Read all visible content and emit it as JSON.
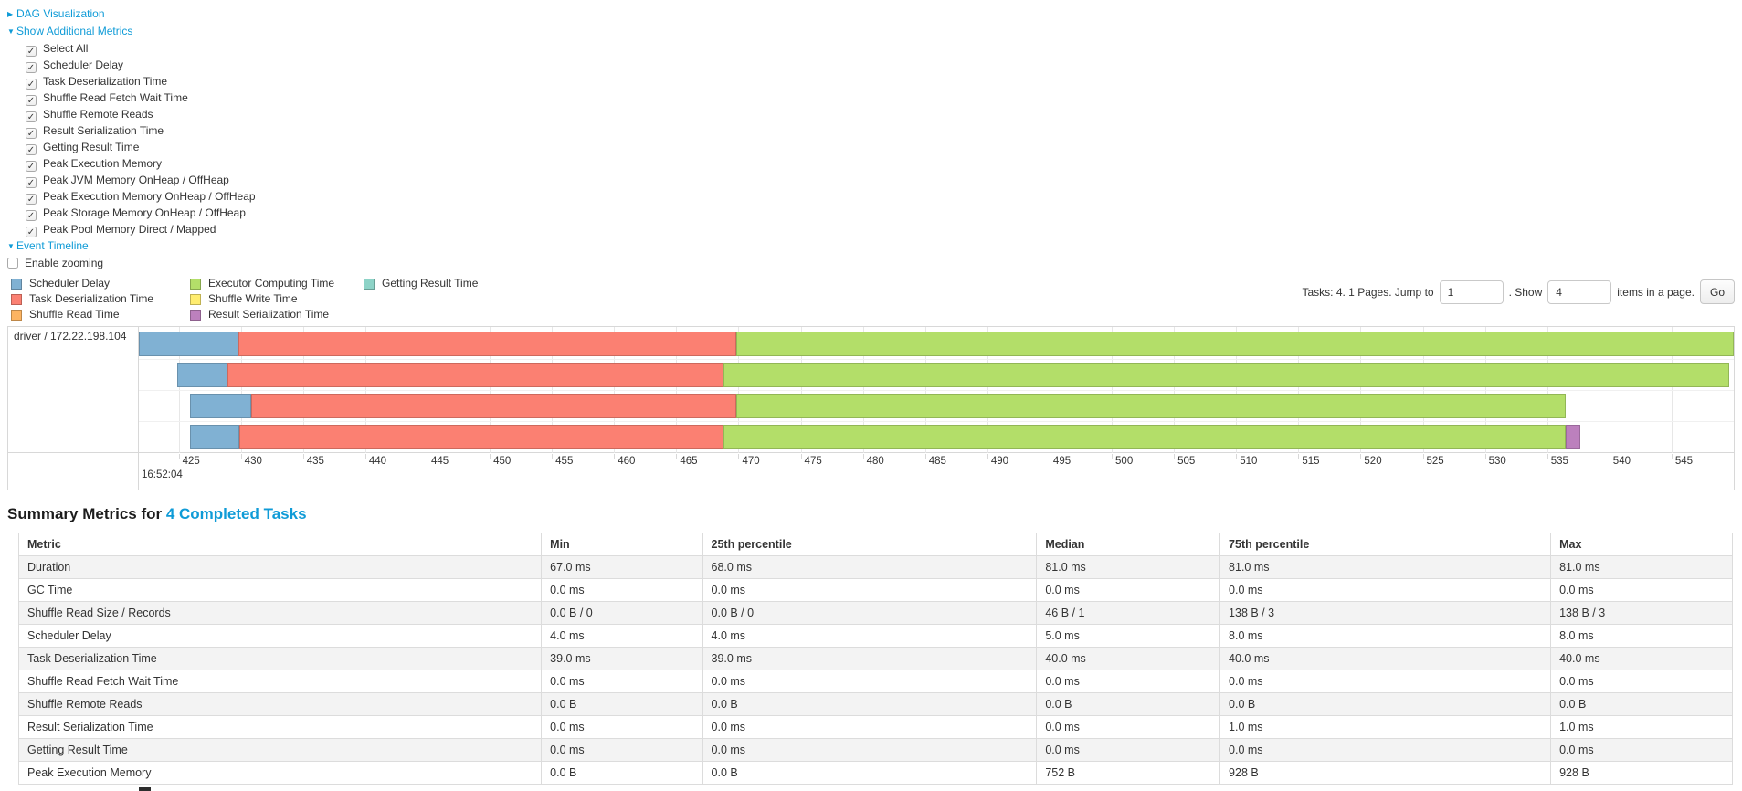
{
  "icons": {
    "caret_right": "▶",
    "caret_down": "▼",
    "check": "✓"
  },
  "link_color": "#0f9bd7",
  "toggles": {
    "dag": {
      "label": "DAG Visualization",
      "expanded": false
    },
    "additional_metrics": {
      "label": "Show Additional Metrics",
      "expanded": true
    },
    "event_timeline": {
      "label": "Event Timeline",
      "expanded": true
    }
  },
  "metrics_checkboxes": [
    {
      "label": "Select All",
      "checked": true
    },
    {
      "label": "Scheduler Delay",
      "checked": true
    },
    {
      "label": "Task Deserialization Time",
      "checked": true
    },
    {
      "label": "Shuffle Read Fetch Wait Time",
      "checked": true
    },
    {
      "label": "Shuffle Remote Reads",
      "checked": true
    },
    {
      "label": "Result Serialization Time",
      "checked": true
    },
    {
      "label": "Getting Result Time",
      "checked": true
    },
    {
      "label": "Peak Execution Memory",
      "checked": true
    },
    {
      "label": "Peak JVM Memory OnHeap / OffHeap",
      "checked": true
    },
    {
      "label": "Peak Execution Memory OnHeap / OffHeap",
      "checked": true
    },
    {
      "label": "Peak Storage Memory OnHeap / OffHeap",
      "checked": true
    },
    {
      "label": "Peak Pool Memory Direct / Mapped",
      "checked": true
    }
  ],
  "enable_zooming": {
    "label": "Enable zooming",
    "checked": false
  },
  "legend": [
    {
      "label": "Scheduler Delay",
      "color": "#80B1D3"
    },
    {
      "label": "Task Deserialization Time",
      "color": "#FB8072"
    },
    {
      "label": "Shuffle Read Time",
      "color": "#FDB462"
    },
    {
      "label": "Executor Computing Time",
      "color": "#B3DE69"
    },
    {
      "label": "Shuffle Write Time",
      "color": "#FFED6F"
    },
    {
      "label": "Result Serialization Time",
      "color": "#BC80BD"
    },
    {
      "label": "Getting Result Time",
      "color": "#8DD3C7"
    }
  ],
  "pagination": {
    "tasks_text": "Tasks: 4. 1 Pages. Jump to",
    "jump_value": "1",
    "show_text": ". Show",
    "show_value": "4",
    "items_text": "items in a page.",
    "go_label": "Go"
  },
  "chart_data": {
    "type": "timeline",
    "group_label": "driver / 172.22.198.104",
    "axis": {
      "min": 421.8,
      "max": 550.0,
      "tick_start": 425,
      "tick_end": 550,
      "tick_step": 5,
      "major_label": "16:52:04"
    },
    "series_colors": {
      "scheduler_delay": "#80B1D3",
      "task_deserialization": "#FB8072",
      "shuffle_read": "#FDB462",
      "executor_computing": "#B3DE69",
      "shuffle_write": "#FFED6F",
      "result_serialization": "#BC80BD",
      "getting_result": "#8DD3C7"
    },
    "tasks": [
      {
        "segments": [
          {
            "type": "scheduler_delay",
            "start": 421.8,
            "end": 429.8
          },
          {
            "type": "task_deserialization",
            "start": 429.8,
            "end": 469.8
          },
          {
            "type": "executor_computing",
            "start": 469.8,
            "end": 550.0
          }
        ]
      },
      {
        "segments": [
          {
            "type": "scheduler_delay",
            "start": 424.9,
            "end": 428.9
          },
          {
            "type": "task_deserialization",
            "start": 428.9,
            "end": 468.8
          },
          {
            "type": "executor_computing",
            "start": 468.8,
            "end": 549.6
          }
        ]
      },
      {
        "segments": [
          {
            "type": "scheduler_delay",
            "start": 425.9,
            "end": 430.8
          },
          {
            "type": "task_deserialization",
            "start": 430.8,
            "end": 469.8
          },
          {
            "type": "executor_computing",
            "start": 469.8,
            "end": 536.5
          }
        ]
      },
      {
        "segments": [
          {
            "type": "scheduler_delay",
            "start": 425.9,
            "end": 429.9
          },
          {
            "type": "task_deserialization",
            "start": 429.9,
            "end": 468.8
          },
          {
            "type": "executor_computing",
            "start": 468.8,
            "end": 536.5
          },
          {
            "type": "result_serialization",
            "start": 536.5,
            "end": 537.7
          }
        ]
      }
    ]
  },
  "summary": {
    "heading_prefix": "Summary Metrics for ",
    "heading_link": "4 Completed Tasks",
    "columns": [
      "Metric",
      "Min",
      "25th percentile",
      "Median",
      "75th percentile",
      "Max"
    ],
    "column_widths_pct": [
      30.5,
      9.4,
      19.5,
      10.7,
      19.3,
      10.6
    ],
    "rows": [
      [
        "Duration",
        "67.0 ms",
        "68.0 ms",
        "81.0 ms",
        "81.0 ms",
        "81.0 ms"
      ],
      [
        "GC Time",
        "0.0 ms",
        "0.0 ms",
        "0.0 ms",
        "0.0 ms",
        "0.0 ms"
      ],
      [
        "Shuffle Read Size / Records",
        "0.0 B / 0",
        "0.0 B / 0",
        "46 B / 1",
        "138 B / 3",
        "138 B / 3"
      ],
      [
        "Scheduler Delay",
        "4.0 ms",
        "4.0 ms",
        "5.0 ms",
        "8.0 ms",
        "8.0 ms"
      ],
      [
        "Task Deserialization Time",
        "39.0 ms",
        "39.0 ms",
        "40.0 ms",
        "40.0 ms",
        "40.0 ms"
      ],
      [
        "Shuffle Read Fetch Wait Time",
        "0.0 ms",
        "0.0 ms",
        "0.0 ms",
        "0.0 ms",
        "0.0 ms"
      ],
      [
        "Shuffle Remote Reads",
        "0.0 B",
        "0.0 B",
        "0.0 B",
        "0.0 B",
        "0.0 B"
      ],
      [
        "Result Serialization Time",
        "0.0 ms",
        "0.0 ms",
        "0.0 ms",
        "1.0 ms",
        "1.0 ms"
      ],
      [
        "Getting Result Time",
        "0.0 ms",
        "0.0 ms",
        "0.0 ms",
        "0.0 ms",
        "0.0 ms"
      ],
      [
        "Peak Execution Memory",
        "0.0 B",
        "0.0 B",
        "752 B",
        "928 B",
        "928 B"
      ]
    ]
  }
}
